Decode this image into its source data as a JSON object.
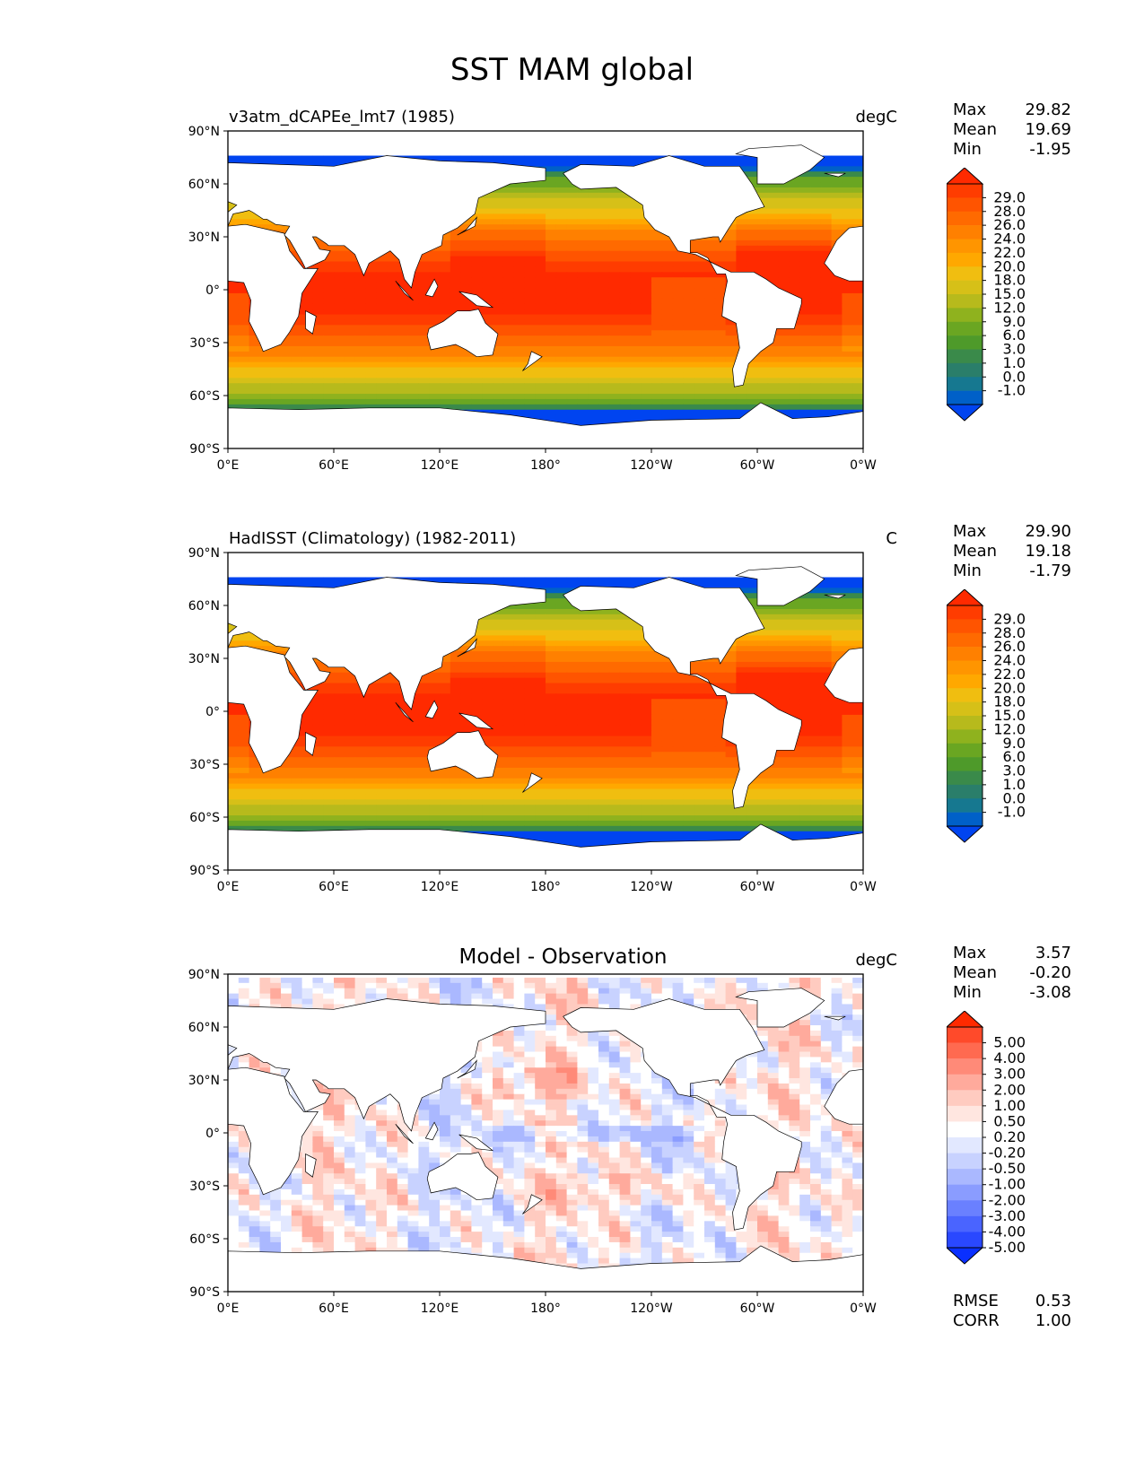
{
  "title": "SST MAM global",
  "axes": {
    "lat_ticks": [
      "90°N",
      "60°N",
      "30°N",
      "0°",
      "30°S",
      "60°S",
      "90°S"
    ],
    "lon_ticks": [
      "0°E",
      "60°E",
      "120°E",
      "180°",
      "120°W",
      "60°W",
      "0°W"
    ]
  },
  "panels": [
    {
      "title_left": "v3atm_dCAPEe_lmt7 (1985)",
      "title_center": "",
      "units": "degC",
      "stats": [
        {
          "label": "Max",
          "value": "29.82"
        },
        {
          "label": "Mean",
          "value": "19.69"
        },
        {
          "label": "Min",
          "value": "-1.95"
        }
      ],
      "colorbar": {
        "labels": [
          "29.0",
          "28.0",
          "26.0",
          "24.0",
          "22.0",
          "20.0",
          "18.0",
          "15.0",
          "12.0",
          "9.0",
          "6.0",
          "3.0",
          "1.0",
          "0.0",
          "-1.0"
        ],
        "colors": [
          "#ff2a00",
          "#ff3c00",
          "#ff5400",
          "#ff6a00",
          "#ff8000",
          "#ff9500",
          "#ffa800",
          "#f0be10",
          "#d6c018",
          "#b7ba1c",
          "#8fb21e",
          "#6aa622",
          "#4e9a2a",
          "#3a8a4a",
          "#2a7e6a",
          "#167890",
          "#0060c8",
          "#0044f0"
        ]
      }
    },
    {
      "title_left": "HadISST (Climatology) (1982-2011)",
      "title_center": "",
      "units": "C",
      "stats": [
        {
          "label": "Max",
          "value": "29.90"
        },
        {
          "label": "Mean",
          "value": "19.18"
        },
        {
          "label": "Min",
          "value": "-1.79"
        }
      ],
      "colorbar": {
        "labels": [
          "29.0",
          "28.0",
          "26.0",
          "24.0",
          "22.0",
          "20.0",
          "18.0",
          "15.0",
          "12.0",
          "9.0",
          "6.0",
          "3.0",
          "1.0",
          "0.0",
          "-1.0"
        ],
        "colors": [
          "#ff2a00",
          "#ff3c00",
          "#ff5400",
          "#ff6a00",
          "#ff8000",
          "#ff9500",
          "#ffa800",
          "#f0be10",
          "#d6c018",
          "#b7ba1c",
          "#8fb21e",
          "#6aa622",
          "#4e9a2a",
          "#3a8a4a",
          "#2a7e6a",
          "#167890",
          "#0060c8",
          "#0044f0"
        ]
      }
    },
    {
      "title_left": "",
      "title_center": "Model - Observation",
      "units": "degC",
      "stats": [
        {
          "label": "Max",
          "value": "3.57"
        },
        {
          "label": "Mean",
          "value": "-0.20"
        },
        {
          "label": "Min",
          "value": "-3.08"
        }
      ],
      "colorbar": {
        "labels": [
          "5.00",
          "4.00",
          "3.00",
          "2.00",
          "1.00",
          "0.50",
          "0.20",
          "-0.20",
          "-0.50",
          "-1.00",
          "-2.00",
          "-3.00",
          "-4.00",
          "-5.00"
        ],
        "colors": [
          "#ff2a00",
          "#ff4a2a",
          "#ff6a50",
          "#ff8a78",
          "#ffaa9c",
          "#ffcbc0",
          "#ffe6e0",
          "#ffffff",
          "#e2e8ff",
          "#c8d2ff",
          "#aab8ff",
          "#8a9cff",
          "#6a80ff",
          "#4a64ff",
          "#2a48ff",
          "#0a30ff"
        ]
      }
    }
  ],
  "footer_stats": [
    {
      "label": "RMSE",
      "value": "0.53"
    },
    {
      "label": "CORR",
      "value": "1.00"
    }
  ]
}
